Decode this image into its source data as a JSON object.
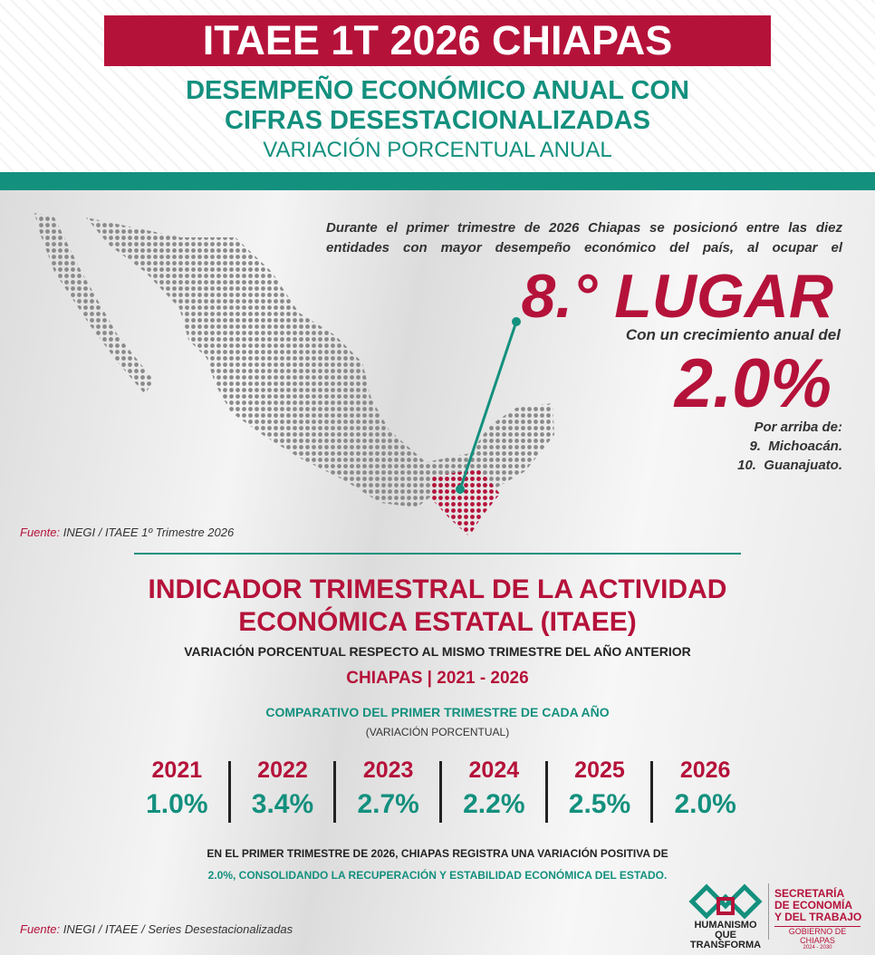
{
  "header": {
    "title": "ITAEE 1T 2026 CHIAPAS",
    "subtitle_lines": [
      "DESEMPEÑO ECONÓMICO ANUAL CON",
      "CIFRAS DESESTACIONALIZADAS"
    ],
    "caption": "VARIACIÓN PORCENTUAL ANUAL"
  },
  "summary": {
    "intro": "Durante el primer trimestre de 2026 Chiapas se posicionó entre las diez entidades con mayor desempeño económico del país, al ocupar el",
    "rank": "8.° LUGAR",
    "growth_text": "Con un crecimiento anual del",
    "growth": "2.0%",
    "above_label": "Por arriba de:",
    "above": [
      "9.  Michoacán.",
      "10.  Guanajuato."
    ]
  },
  "source_map": {
    "label": "Fuente:",
    "text": "INEGI / ITAEE 1º Trimestre 2026"
  },
  "section": {
    "title_lines": [
      "INDICADOR TRIMESTRAL DE LA ACTIVIDAD",
      "ECONÓMICA ESTATAL (ITAEE)"
    ],
    "subtitle": "VARIACIÓN PORCENTUAL RESPECTO AL MISMO TRIMESTRE DEL AÑO ANTERIOR",
    "scope": "CHIAPAS | 2021 - 2026",
    "comparison": "COMPARATIVO DEL PRIMER TRIMESTRE DE CADA AÑO",
    "unit": "(VARIACIÓN PORCENTUAL)",
    "years": [
      {
        "year": "2021",
        "value": "1.0%"
      },
      {
        "year": "2022",
        "value": "3.4%"
      },
      {
        "year": "2023",
        "value": "2.7%"
      },
      {
        "year": "2024",
        "value": "2.2%"
      },
      {
        "year": "2025",
        "value": "2.5%"
      },
      {
        "year": "2026",
        "value": "2.0%"
      }
    ],
    "conclusion_lines": [
      "EN EL PRIMER TRIMESTRE DE 2026, CHIAPAS REGISTRA UNA VARIACIÓN POSITIVA DE",
      "2.0%, CONSOLIDANDO LA RECUPERACIÓN Y ESTABILIDAD ECONÓMICA DEL ESTADO."
    ]
  },
  "source_series": {
    "label": "Fuente:",
    "text": "INEGI / ITAEE / Series Desestacionalizadas"
  },
  "logos": {
    "left": [
      "HUMANISMO QUE",
      "TRANSFORMA"
    ],
    "right": [
      "SECRETARÍA",
      "DE ECONOMÍA",
      "Y DEL TRABAJO"
    ],
    "gov": "GOBIERNO DE CHIAPAS",
    "period": "2024 - 2030"
  }
}
